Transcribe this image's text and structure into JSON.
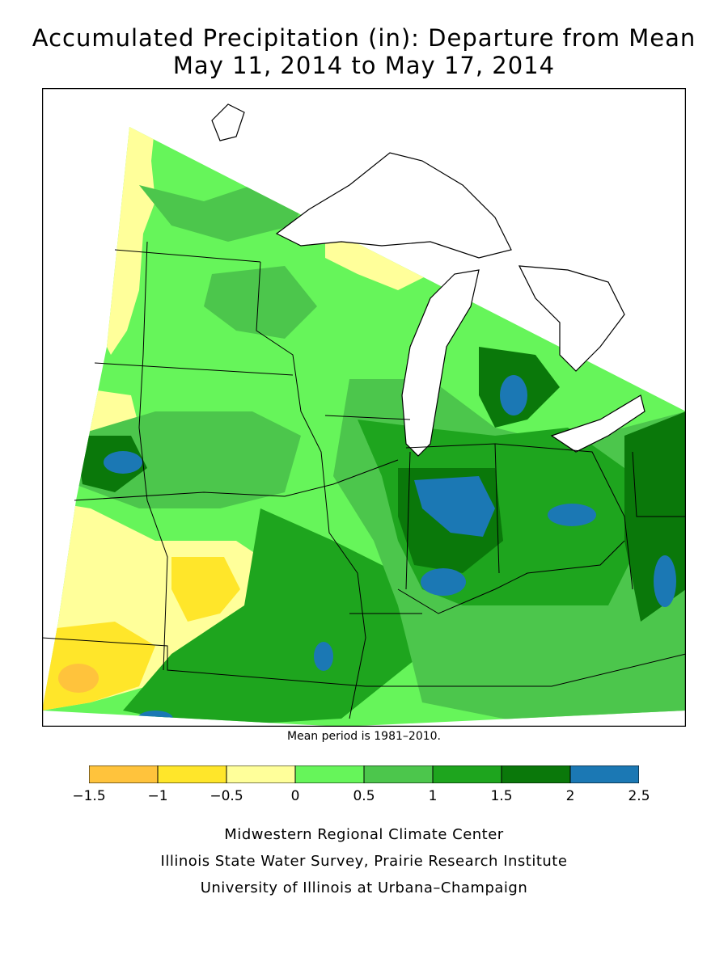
{
  "title": {
    "line1": "Accumulated Precipitation (in): Departure from Mean",
    "line2": "May 11, 2014 to May 17, 2014"
  },
  "mean_note": "Mean period is 1981–2010.",
  "legend": {
    "bins": [
      {
        "min": -1.5,
        "max": -1.0,
        "color": "#ffc33c"
      },
      {
        "min": -1.0,
        "max": -0.5,
        "color": "#ffe62a"
      },
      {
        "min": -0.5,
        "max": 0.0,
        "color": "#ffff9a"
      },
      {
        "min": 0.0,
        "max": 0.5,
        "color": "#66f55a"
      },
      {
        "min": 0.5,
        "max": 1.0,
        "color": "#4cc64c"
      },
      {
        "min": 1.0,
        "max": 1.5,
        "color": "#1ea51e"
      },
      {
        "min": 1.5,
        "max": 2.0,
        "color": "#0a780a"
      },
      {
        "min": 2.0,
        "max": 2.5,
        "color": "#1b78b4"
      }
    ],
    "tick_labels": [
      "−1.5",
      "−1",
      "−0.5",
      "0",
      "0.5",
      "1",
      "1.5",
      "2",
      "2.5"
    ]
  },
  "credits": [
    "Midwestern Regional Climate Center",
    "Illinois State Water Survey, Prairie Research Institute",
    "University of Illinois at Urbana–Champaign"
  ]
}
